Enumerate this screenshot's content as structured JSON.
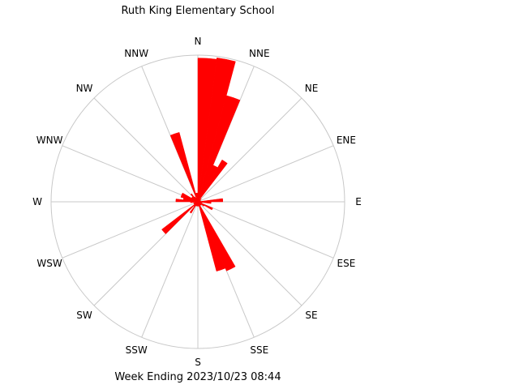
{
  "chart_data": {
    "type": "wind-rose",
    "title": "Ruth King Elementary School",
    "subtitle": "Week Ending 2023/10/23 08:44",
    "directions": [
      "N",
      "NNE",
      "NE",
      "ENE",
      "E",
      "ESE",
      "SE",
      "SSE",
      "S",
      "SSW",
      "SW",
      "WSW",
      "W",
      "WNW",
      "NW",
      "NNW"
    ],
    "bins_per_direction": 3,
    "bar_color": "#ff0000",
    "grid_color": "#c8c8c8",
    "grid": true,
    "legend": "none",
    "rmax": 1.0,
    "values": [
      0.06,
      0.98,
      0.99,
      0.75,
      0.27,
      0.33,
      0.02,
      0.03,
      0.02,
      0.01,
      0.02,
      0.02,
      0.17,
      0.09,
      0.03,
      0.02,
      0.11,
      0.05,
      0.03,
      0.03,
      0.03,
      0.51,
      0.49,
      0.03,
      0.03,
      0.03,
      0.03,
      0.03,
      0.03,
      0.09,
      0.04,
      0.31,
      0.03,
      0.03,
      0.03,
      0.02,
      0.05,
      0.15,
      0.1,
      0.12,
      0.12,
      0.05,
      0.05,
      0.07,
      0.04,
      0.03,
      0.49,
      0.06
    ]
  }
}
